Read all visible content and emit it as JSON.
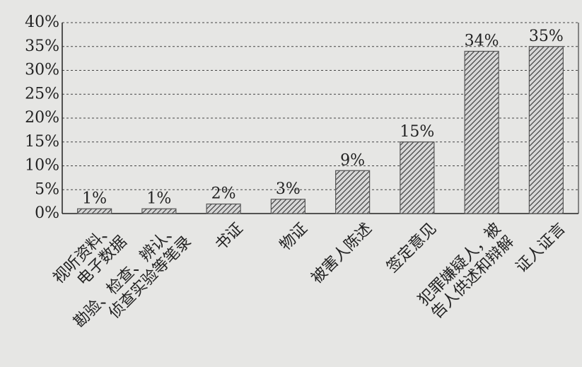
{
  "chart_data": {
    "type": "bar",
    "categories": [
      [
        "视听资料、",
        "电子数据"
      ],
      [
        "勘验、检查、辨认、",
        "侦查实验等笔录"
      ],
      [
        "书证"
      ],
      [
        "物证"
      ],
      [
        "被害人陈述"
      ],
      [
        "签定意见"
      ],
      [
        "犯罪嫌疑人，被",
        "告人供述和辩解"
      ],
      [
        "证人证言"
      ]
    ],
    "values": [
      1,
      1,
      2,
      3,
      9,
      15,
      34,
      35
    ],
    "value_labels": [
      "1%",
      "1%",
      "2%",
      "3%",
      "9%",
      "15%",
      "34%",
      "35%"
    ],
    "color": "#555555",
    "ylim": [
      0,
      40
    ],
    "yticks": [
      {
        "value": 0,
        "label": "0%"
      },
      {
        "value": 5,
        "label": "5%"
      },
      {
        "value": 10,
        "label": "10%"
      },
      {
        "value": 15,
        "label": "15%"
      },
      {
        "value": 20,
        "label": "20%"
      },
      {
        "value": 25,
        "label": "25%"
      },
      {
        "value": 30,
        "label": "30%"
      },
      {
        "value": 35,
        "label": "35%"
      },
      {
        "value": 40,
        "label": "40%"
      }
    ],
    "grid": true
  }
}
